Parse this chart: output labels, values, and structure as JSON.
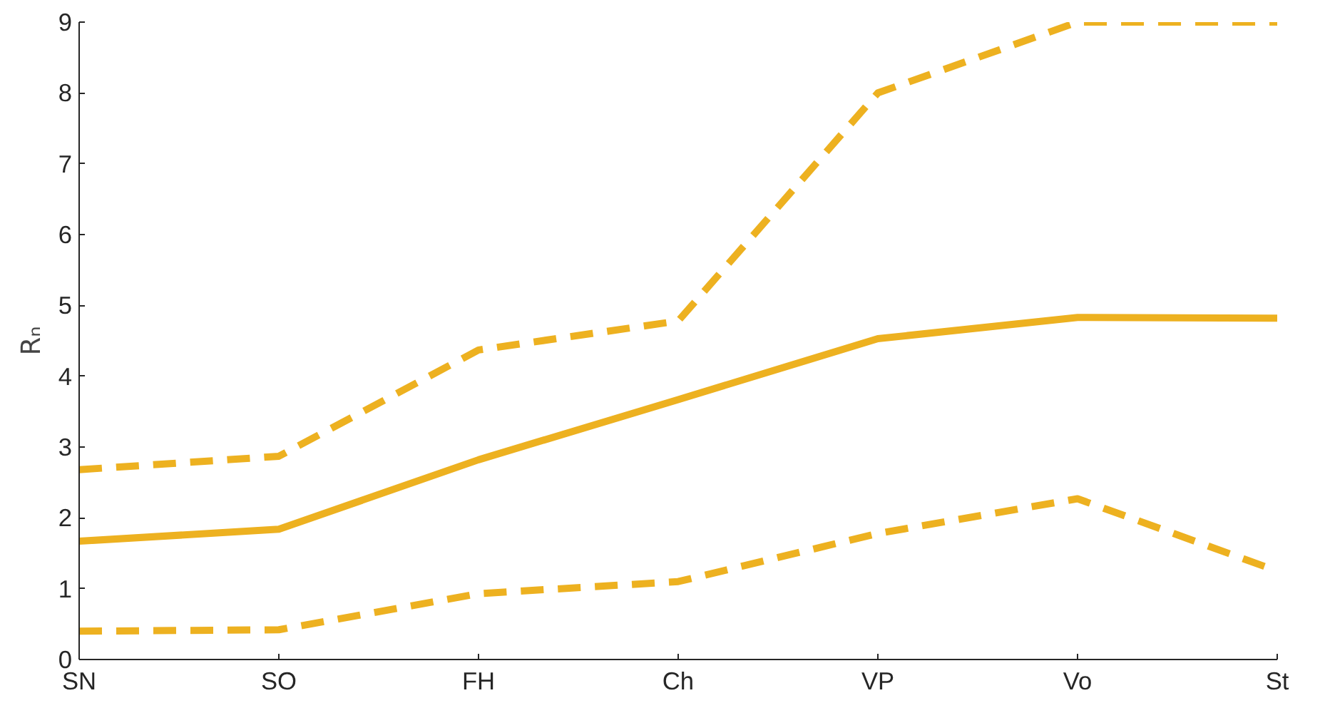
{
  "chart_data": {
    "type": "line",
    "ylabel": "Rₙ",
    "categories": [
      "SN",
      "SO",
      "FH",
      "Ch",
      "VP",
      "Vo",
      "St"
    ],
    "ylim": [
      0,
      9
    ],
    "yticks": [
      0,
      1,
      2,
      3,
      4,
      5,
      6,
      7,
      8,
      9
    ],
    "grid": false,
    "marker": "none",
    "series": [
      {
        "color": "#edb120",
        "line_style": "solid",
        "values": [
          1.67,
          1.84,
          2.82,
          3.67,
          4.53,
          4.83,
          4.82
        ]
      },
      {
        "color": "#edb120",
        "line_style": "dashed",
        "values": [
          2.68,
          2.87,
          4.37,
          4.78,
          8.0,
          9.0,
          9.0
        ]
      },
      {
        "color": "#edb120",
        "line_style": "dashed",
        "values": [
          0.4,
          0.42,
          0.93,
          1.1,
          1.78,
          2.27,
          1.25
        ]
      }
    ]
  }
}
